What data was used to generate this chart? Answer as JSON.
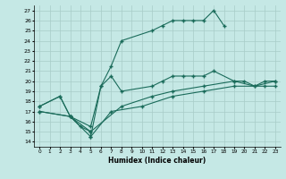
{
  "xlabel": "Humidex (Indice chaleur)",
  "bg_color": "#c5e8e5",
  "grid_color": "#a8ccc8",
  "line_color": "#1a6b5a",
  "xlim": [
    -0.5,
    23.5
  ],
  "ylim": [
    13.5,
    27.5
  ],
  "xticks": [
    0,
    1,
    2,
    3,
    4,
    5,
    6,
    7,
    8,
    9,
    10,
    11,
    12,
    13,
    14,
    15,
    16,
    17,
    18,
    19,
    20,
    21,
    22,
    23
  ],
  "yticks": [
    14,
    15,
    16,
    17,
    18,
    19,
    20,
    21,
    22,
    23,
    24,
    25,
    26,
    27
  ],
  "line1_x": [
    0,
    2,
    3,
    4,
    5,
    5,
    6,
    7,
    8,
    11,
    12,
    13,
    14,
    15,
    16,
    17,
    18
  ],
  "line1_y": [
    17.5,
    18.5,
    16.5,
    15.5,
    15.0,
    14.5,
    19.5,
    21.5,
    24.0,
    25.0,
    25.5,
    26.0,
    26.0,
    26.0,
    26.0,
    27.0,
    25.5
  ],
  "line2_x": [
    0,
    2,
    3,
    5,
    6,
    7,
    8,
    11,
    12,
    13,
    14,
    15,
    16,
    17,
    19,
    20,
    21,
    22,
    23
  ],
  "line2_y": [
    17.5,
    18.5,
    16.5,
    15.5,
    19.5,
    20.5,
    19.0,
    19.5,
    20.0,
    20.5,
    20.5,
    20.5,
    20.5,
    21.0,
    20.0,
    20.0,
    19.5,
    20.0,
    20.0
  ],
  "line3_x": [
    0,
    3,
    5,
    8,
    11,
    13,
    16,
    19,
    21,
    23
  ],
  "line3_y": [
    17.0,
    16.5,
    15.0,
    17.5,
    18.5,
    19.0,
    19.5,
    20.0,
    19.5,
    20.0
  ],
  "line4_x": [
    0,
    3,
    5,
    7,
    10,
    13,
    16,
    19,
    22,
    23
  ],
  "line4_y": [
    17.0,
    16.5,
    14.5,
    17.0,
    17.5,
    18.5,
    19.0,
    19.5,
    19.5,
    19.5
  ]
}
